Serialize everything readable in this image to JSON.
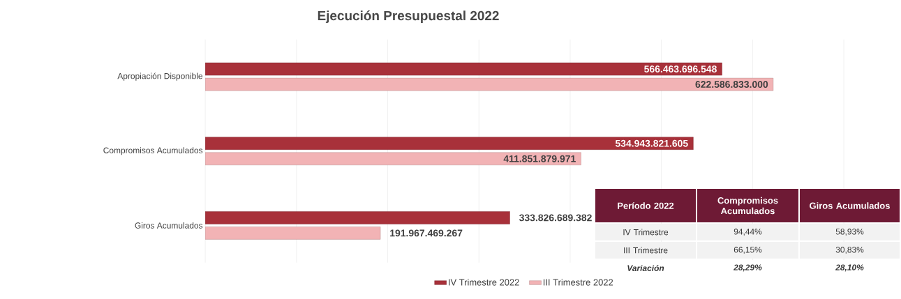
{
  "chart_data": [
    {
      "type": "bar",
      "orientation": "horizontal",
      "title": "Ejecución Presupuestal 2022",
      "categories": [
        "Apropiación Disponible",
        "Compromisos Acumulados",
        "Giros Acumulados"
      ],
      "series": [
        {
          "name": "IV Trimestre 2022",
          "color": "#a8313a",
          "values": [
            566463696548,
            534943821605,
            333826689382
          ],
          "value_labels": [
            "566.463.696.548",
            "534.943.821.605",
            "333.826.689.382"
          ]
        },
        {
          "name": "III Trimestre 2022",
          "color": "#f2b3b5",
          "values": [
            622586833000,
            411851879971,
            191967469267
          ],
          "value_labels": [
            "622.586.833.000",
            "411.851.879.971",
            "191.967.469.267"
          ]
        }
      ],
      "xlim": [
        0,
        700000000000
      ],
      "xticks": [
        {
          "value": 0,
          "label": null
        },
        {
          "value": 100000000000,
          "label": null
        },
        {
          "value": 200000000000,
          "label": null
        },
        {
          "value": 300000000000,
          "label": null
        },
        {
          "value": 400000000000,
          "label": null
        },
        {
          "value": 500000000000,
          "label": null
        },
        {
          "value": 600000000000,
          "label": null
        },
        {
          "value": 700000000000,
          "label": null
        }
      ],
      "tick_labels": "y",
      "grid": "x",
      "legend": "bottom"
    },
    {
      "type": "other",
      "color": "#6e1a35",
      "annotations": [
        "Período 2022",
        "Compromisos Acumulados",
        "Giros Acumulados",
        "IV Trimestre",
        "94,44%",
        "58,93%",
        "III Trimestre",
        "66,15%",
        "30,83%",
        "Variación",
        "28,29%",
        "28,10%"
      ]
    }
  ]
}
